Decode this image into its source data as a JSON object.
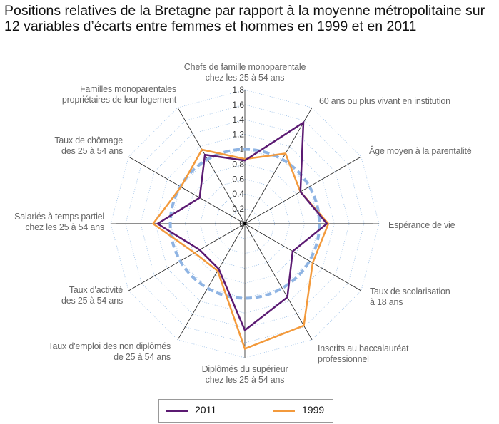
{
  "chart_data": {
    "type": "radar",
    "title": "Positions relatives de la Bretagne par rapport à la moyenne métropolitaine sur 12 variables d’écarts entre femmes et hommes en 1999 et en 2011",
    "axes": [
      [
        "Chefs de famille monoparentale",
        "chez les 25 à 54 ans"
      ],
      [
        "60 ans ou plus vivant en institution"
      ],
      [
        "Âge moyen à la parentalité"
      ],
      [
        "Espérance de vie"
      ],
      [
        "Taux de scolarisation",
        "à 18 ans"
      ],
      [
        "Inscrits au baccalauréat",
        "professionnel"
      ],
      [
        "Diplômés du supérieur",
        "chez les 25 à 54 ans"
      ],
      [
        "Taux d'emploi des non diplômés",
        "de 25 à 54 ans"
      ],
      [
        "Taux d'activité",
        "des 25 à 54 ans"
      ],
      [
        "Salariés à temps partiel",
        "chez les 25 à 54 ans"
      ],
      [
        "Taux de chômage",
        "des 25 à 54 ans"
      ],
      [
        "Familles monoparentales",
        "propriétaires de leur logement"
      ]
    ],
    "ticks": [
      "0",
      "0,2",
      "0,4",
      "0,6",
      "0,8",
      "1",
      "1,2",
      "1,4",
      "1,6",
      "1,8"
    ],
    "rlim": [
      0,
      1.8
    ],
    "reference_value": 1,
    "series": [
      {
        "name": "2011",
        "color": "#5b1a72",
        "values": [
          0.85,
          1.57,
          0.86,
          1.1,
          0.74,
          1.14,
          1.43,
          0.7,
          0.7,
          1.17,
          0.7,
          1.07
        ]
      },
      {
        "name": "1999",
        "color": "#f39a3c",
        "values": [
          0.87,
          1.09,
          0.86,
          1.12,
          1.05,
          1.58,
          1.68,
          0.73,
          0.78,
          1.23,
          0.99,
          1.15
        ]
      }
    ],
    "reference_color": "#8fb4e3",
    "grid_color": "#9cc0e8",
    "legend_position": "bottom"
  }
}
